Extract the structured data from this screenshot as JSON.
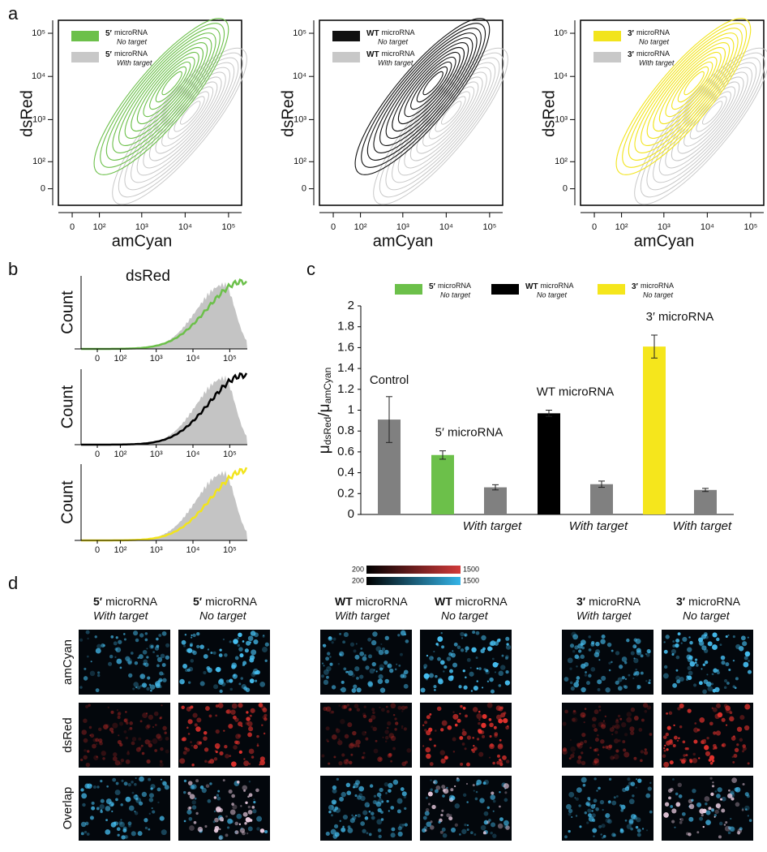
{
  "panel_labels": [
    "a",
    "b",
    "c",
    "d"
  ],
  "chart_data": [
    {
      "type": "contour",
      "xlabel": "amCyan",
      "ylabel": "dsRed",
      "xscale": "biexponential",
      "yscale": "biexponential",
      "xlim": [
        -40,
        200000
      ],
      "ylim": [
        -50,
        200000
      ],
      "xticks": [
        0,
        {
          "value": 100,
          "label": "10²"
        },
        {
          "value": 1000,
          "label": "10³"
        },
        {
          "value": 10000,
          "label": "10⁴"
        },
        {
          "value": 100000,
          "label": "10⁵"
        }
      ],
      "yticks": [
        0,
        {
          "value": 100,
          "label": "10²"
        },
        {
          "value": 1000,
          "label": "10³"
        },
        {
          "value": 10000,
          "label": "10⁴"
        },
        {
          "value": 100000,
          "label": "10⁵"
        }
      ],
      "series": [
        {
          "name_prefix": "5′",
          "name": "microRNA",
          "note": "No target",
          "color": "#6cc04a"
        },
        {
          "name_prefix": "5′",
          "name": "microRNA",
          "note": "With target",
          "color": "#c8c8c8"
        }
      ]
    },
    {
      "type": "contour",
      "xlabel": "amCyan",
      "ylabel": "dsRed",
      "xscale": "biexponential",
      "yscale": "biexponential",
      "xlim": [
        -40,
        200000
      ],
      "ylim": [
        -50,
        200000
      ],
      "xticks": [
        0,
        {
          "value": 100,
          "label": "10²"
        },
        {
          "value": 1000,
          "label": "10³"
        },
        {
          "value": 10000,
          "label": "10⁴"
        },
        {
          "value": 100000,
          "label": "10⁵"
        }
      ],
      "yticks": [
        0,
        {
          "value": 100,
          "label": "10²"
        },
        {
          "value": 1000,
          "label": "10³"
        },
        {
          "value": 10000,
          "label": "10⁴"
        },
        {
          "value": 100000,
          "label": "10⁵"
        }
      ],
      "series": [
        {
          "name_prefix": "WT",
          "name": "microRNA",
          "note": "No target",
          "color": "#111111"
        },
        {
          "name_prefix": "WT",
          "name": "microRNA",
          "note": "With target",
          "color": "#c8c8c8"
        }
      ]
    },
    {
      "type": "contour",
      "xlabel": "amCyan",
      "ylabel": "dsRed",
      "xscale": "biexponential",
      "yscale": "biexponential",
      "xlim": [
        -40,
        200000
      ],
      "ylim": [
        -50,
        200000
      ],
      "xticks": [
        0,
        {
          "value": 100,
          "label": "10²"
        },
        {
          "value": 1000,
          "label": "10³"
        },
        {
          "value": 10000,
          "label": "10⁴"
        },
        {
          "value": 100000,
          "label": "10⁵"
        }
      ],
      "yticks": [
        0,
        {
          "value": 100,
          "label": "10²"
        },
        {
          "value": 1000,
          "label": "10³"
        },
        {
          "value": 10000,
          "label": "10⁴"
        },
        {
          "value": 100000,
          "label": "10⁵"
        }
      ],
      "series": [
        {
          "name_prefix": "3′",
          "name": "microRNA",
          "note": "No target",
          "color": "#f2e41c"
        },
        {
          "name_prefix": "3′",
          "name": "microRNA",
          "note": "With target",
          "color": "#c8c8c8"
        }
      ]
    },
    {
      "type": "histogram",
      "title": "dsRed",
      "ylabel": "Count",
      "xscale": "biexponential",
      "xlim": [
        -60,
        300000
      ],
      "xticks": [
        0,
        {
          "value": 100,
          "label": "10²"
        },
        {
          "value": 1000,
          "label": "10³"
        },
        {
          "value": 10000,
          "label": "10⁴"
        },
        {
          "value": 100000,
          "label": "10⁵"
        }
      ],
      "series": [
        {
          "color": "#c4c4c4"
        },
        {
          "color": "#6cc04a"
        }
      ]
    },
    {
      "type": "histogram",
      "ylabel": "Count",
      "xscale": "biexponential",
      "xlim": [
        -60,
        300000
      ],
      "xticks": [
        0,
        {
          "value": 100,
          "label": "10²"
        },
        {
          "value": 1000,
          "label": "10³"
        },
        {
          "value": 10000,
          "label": "10⁴"
        },
        {
          "value": 100000,
          "label": "10⁵"
        }
      ],
      "series": [
        {
          "color": "#c4c4c4"
        },
        {
          "color": "#000000"
        }
      ]
    },
    {
      "type": "histogram",
      "ylabel": "Count",
      "xscale": "biexponential",
      "xlim": [
        -60,
        300000
      ],
      "xticks": [
        0,
        {
          "value": 100,
          "label": "10²"
        },
        {
          "value": 1000,
          "label": "10³"
        },
        {
          "value": 10000,
          "label": "10⁴"
        },
        {
          "value": 100000,
          "label": "10⁵"
        }
      ],
      "series": [
        {
          "color": "#c4c4c4"
        },
        {
          "color": "#f2e41c"
        }
      ]
    },
    {
      "type": "bar",
      "ylabel": [
        "μ",
        "dsRed",
        "/μ",
        "amCyan"
      ],
      "categories": [
        "Control",
        "5′ microRNA",
        "With target",
        "WT microRNA",
        "With target",
        "3′ microRNA",
        "With target"
      ],
      "values": [
        0.91,
        0.57,
        0.26,
        0.97,
        0.29,
        1.61,
        0.235
      ],
      "errors": [
        0.22,
        0.04,
        0.025,
        0.03,
        0.03,
        0.11,
        0.015
      ],
      "colors": [
        "#808080",
        "#6cc04a",
        "#808080",
        "#000000",
        "#808080",
        "#f5e61c",
        "#808080"
      ],
      "ylim": [
        0,
        2
      ],
      "yticks": [
        0,
        0.2,
        0.4,
        0.6,
        0.8,
        1,
        1.2,
        1.4,
        1.6,
        1.8,
        2
      ],
      "legend": [
        {
          "name_prefix": "5′",
          "name": "microRNA",
          "note": "No target",
          "color": "#6cc04a"
        },
        {
          "name_prefix": "WT",
          "name": "microRNA",
          "note": "No target",
          "color": "#000000"
        },
        {
          "name_prefix": "3′",
          "name": "microRNA",
          "note": "No target",
          "color": "#f5e61c"
        }
      ]
    }
  ],
  "image_grid": {
    "colorbars": [
      {
        "min": 200,
        "max": 1500,
        "color": "#d23a3a"
      },
      {
        "min": 200,
        "max": 1500,
        "color": "#34b4e8"
      }
    ],
    "rows": [
      "amCyan",
      "dsRed",
      "Overlap"
    ],
    "columns": [
      {
        "name_prefix": "5′",
        "name": "microRNA",
        "note": "With target"
      },
      {
        "name_prefix": "5′",
        "name": "microRNA",
        "note": "No target"
      },
      {
        "name_prefix": "WT",
        "name": "microRNA",
        "note": "With target"
      },
      {
        "name_prefix": "WT",
        "name": "microRNA",
        "note": "No target"
      },
      {
        "name_prefix": "3′",
        "name": "microRNA",
        "note": "With target"
      },
      {
        "name_prefix": "3′",
        "name": "microRNA",
        "note": "No target"
      }
    ]
  }
}
